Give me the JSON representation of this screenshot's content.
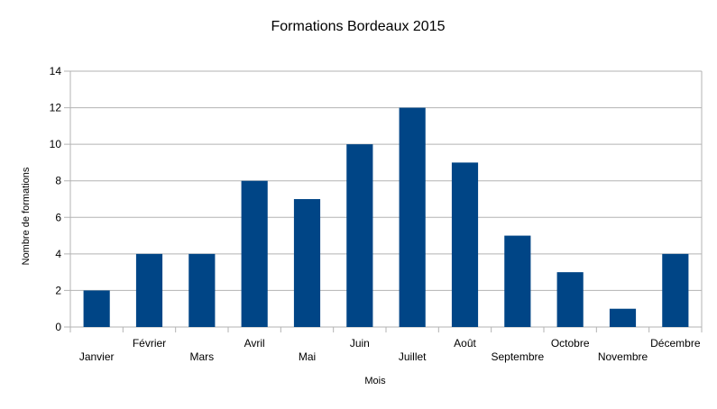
{
  "chart_data": {
    "type": "bar",
    "title": "Formations Bordeaux  2015",
    "xlabel": "Mois",
    "ylabel": "Nombre de formations",
    "categories": [
      "Janvier",
      "Février",
      "Mars",
      "Avril",
      "Mai",
      "Juin",
      "Juillet",
      "Août",
      "Septembre",
      "Octobre",
      "Novembre",
      "Décembre"
    ],
    "values": [
      2,
      4,
      4,
      8,
      7,
      10,
      12,
      9,
      5,
      3,
      1,
      4
    ],
    "ylim": [
      0,
      14
    ],
    "yticks": [
      "0",
      "2",
      "4",
      "6",
      "8",
      "10",
      "12",
      "14"
    ],
    "grid": true,
    "legend": "none",
    "bar_color": "#004586",
    "grid_color": "#b3b3b3"
  }
}
